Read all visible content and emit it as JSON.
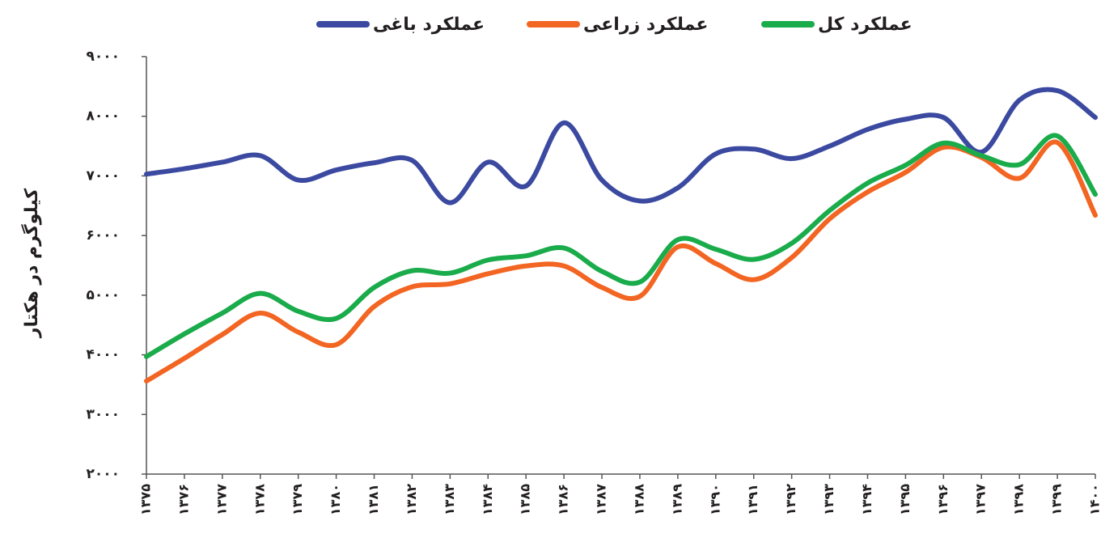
{
  "chart_data": {
    "type": "line",
    "y_label": "کیلوگرم در هکتار",
    "categories": [
      "۱۳۷۵",
      "۱۳۷۶",
      "۱۳۷۷",
      "۱۳۷۸",
      "۱۳۷۹",
      "۱۳۸۰",
      "۱۳۸۱",
      "۱۳۸۲",
      "۱۳۸۳",
      "۱۳۸۴",
      "۱۳۸۵",
      "۱۳۸۶",
      "۱۳۸۷",
      "۱۳۸۸",
      "۱۳۸۹",
      "۱۳۹۰",
      "۱۳۹۱",
      "۱۳۹۲",
      "۱۳۹۳",
      "۱۳۹۴",
      "۱۳۹۵",
      "۱۳۹۶",
      "۱۳۹۷",
      "۱۳۹۸",
      "۱۳۹۹",
      "۱۴۰۰"
    ],
    "series": [
      {
        "name": "عملکرد باغی",
        "color": "#3b4aa0",
        "values": [
          7030,
          7120,
          7230,
          7340,
          6930,
          7100,
          7220,
          7260,
          6550,
          7230,
          6830,
          7890,
          6930,
          6580,
          6800,
          7370,
          7450,
          7290,
          7500,
          7780,
          7950,
          7980,
          7400,
          8270,
          8430,
          7980
        ]
      },
      {
        "name": "عملکرد زراعی",
        "color": "#f26522",
        "values": [
          3560,
          3940,
          4340,
          4700,
          4380,
          4170,
          4810,
          5140,
          5190,
          5360,
          5490,
          5490,
          5130,
          4980,
          5810,
          5530,
          5260,
          5630,
          6280,
          6730,
          7060,
          7480,
          7310,
          6960,
          7560,
          6340
        ]
      },
      {
        "name": "عملکرد کل",
        "color": "#1aab4b",
        "values": [
          3970,
          4350,
          4700,
          5030,
          4730,
          4610,
          5130,
          5410,
          5370,
          5590,
          5660,
          5790,
          5400,
          5220,
          5930,
          5770,
          5600,
          5870,
          6420,
          6880,
          7180,
          7550,
          7340,
          7190,
          7670,
          6690
        ]
      }
    ],
    "ylim": [
      2000,
      9000
    ],
    "yticks": [
      {
        "value": 2000,
        "label": "۲۰۰۰"
      },
      {
        "value": 3000,
        "label": "۳۰۰۰"
      },
      {
        "value": 4000,
        "label": "۴۰۰۰"
      },
      {
        "value": 5000,
        "label": "۵۰۰۰"
      },
      {
        "value": 6000,
        "label": "۶۰۰۰"
      },
      {
        "value": 7000,
        "label": "۷۰۰۰"
      },
      {
        "value": 8000,
        "label": "۸۰۰۰"
      },
      {
        "value": 9000,
        "label": "۹۰۰۰"
      }
    ],
    "grid": false
  }
}
